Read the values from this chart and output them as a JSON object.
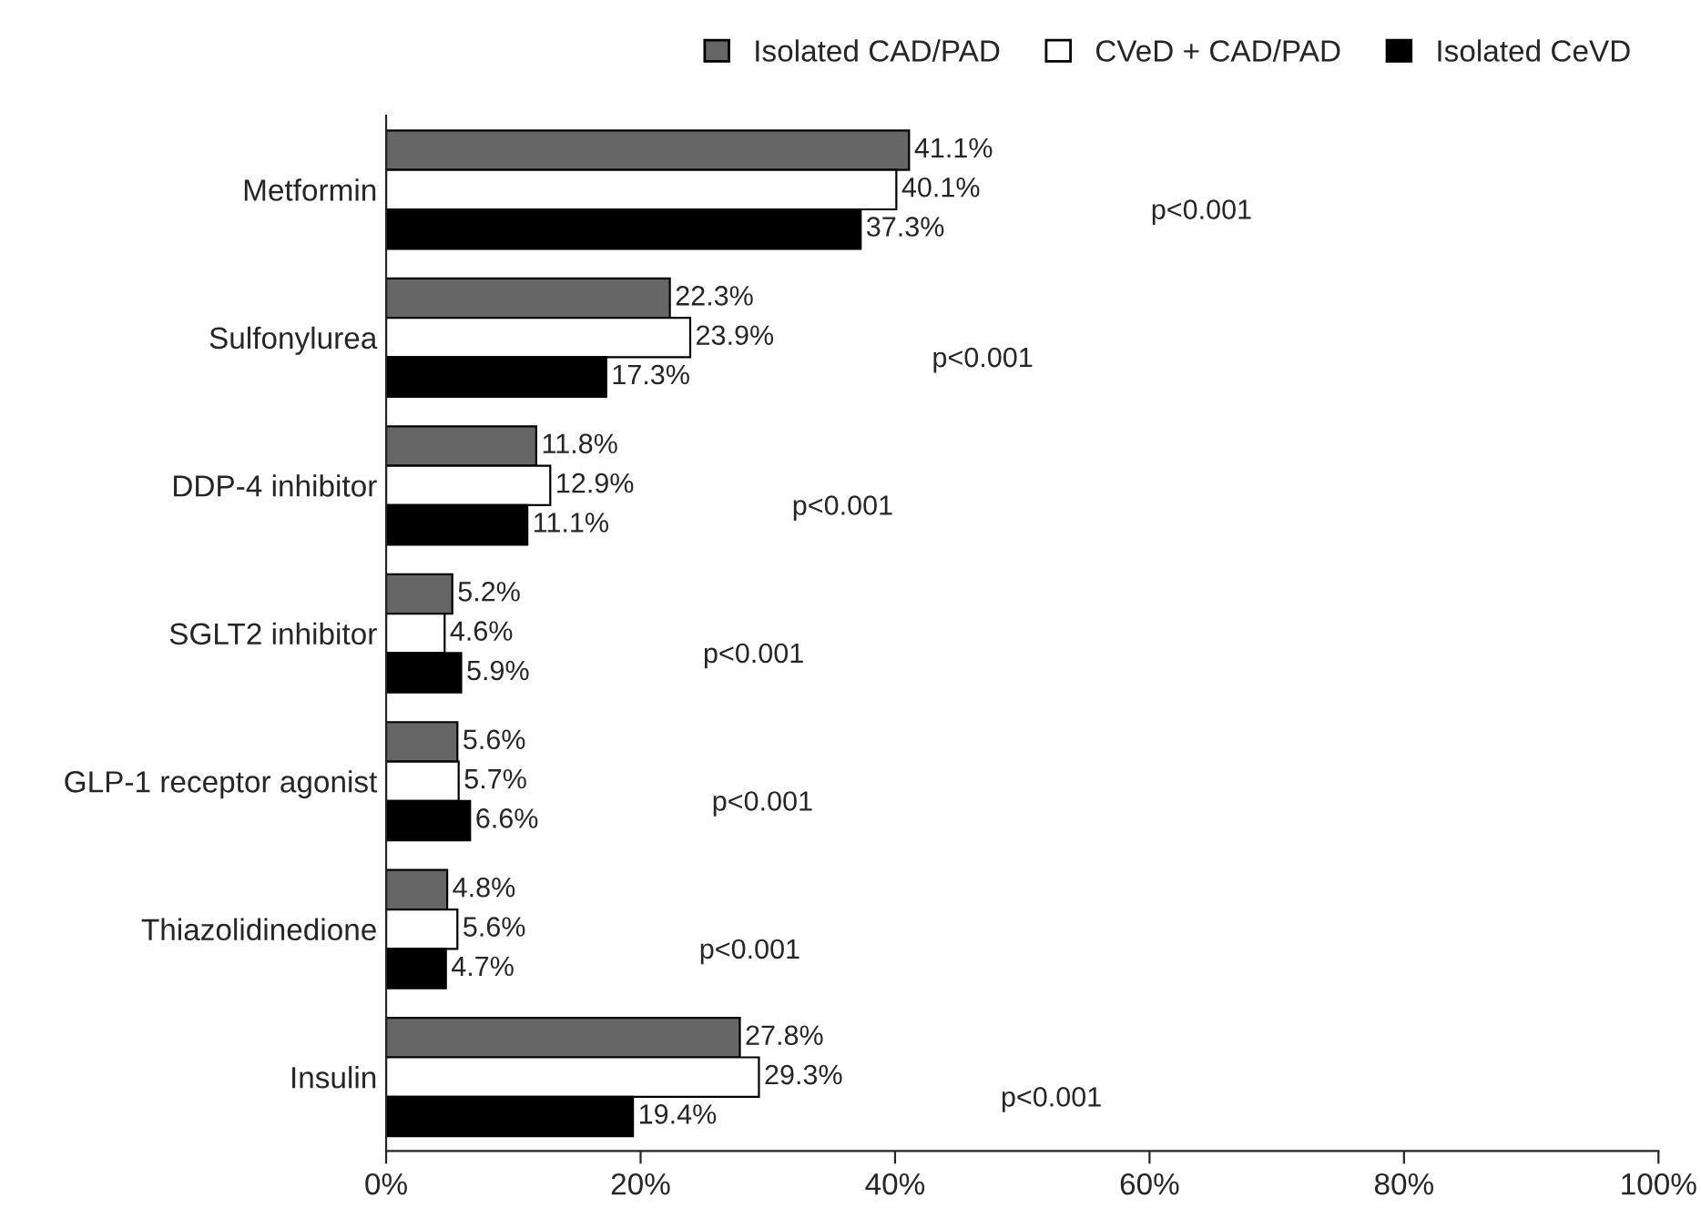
{
  "chart_data": {
    "type": "bar",
    "orientation": "horizontal",
    "categories": [
      "Metformin",
      "Sulfonylurea",
      "DDP-4 inhibitor",
      "SGLT2 inhibitor",
      "GLP-1 receptor agonist",
      "Thiazolidinedione",
      "Insulin"
    ],
    "series": [
      {
        "name": "Isolated CAD/PAD",
        "color": "#666666",
        "values": [
          41.1,
          22.3,
          11.8,
          5.2,
          5.6,
          4.8,
          27.8
        ],
        "value_labels": [
          "41.1%",
          "22.3%",
          "11.8%",
          "5.2%",
          "5.6%",
          "4.8%",
          "27.8%"
        ]
      },
      {
        "name": "CVeD + CAD/PAD",
        "color": "#ffffff",
        "values": [
          40.1,
          23.9,
          12.9,
          4.6,
          5.7,
          5.6,
          29.3
        ],
        "value_labels": [
          "40.1%",
          "23.9%",
          "12.9%",
          "4.6%",
          "5.7%",
          "5.6%",
          "29.3%"
        ]
      },
      {
        "name": "Isolated CeVD",
        "color": "#000000",
        "values": [
          37.3,
          17.3,
          11.1,
          5.9,
          6.6,
          4.7,
          19.4
        ],
        "value_labels": [
          "37.3%",
          "17.3%",
          "11.1%",
          "5.9%",
          "6.6%",
          "4.7%",
          "19.4%"
        ]
      }
    ],
    "xlim": [
      0,
      100
    ],
    "xticks": [
      {
        "value": 0,
        "label": "0%"
      },
      {
        "value": 20,
        "label": "20%"
      },
      {
        "value": 40,
        "label": "40%"
      },
      {
        "value": 60,
        "label": "60%"
      },
      {
        "value": 80,
        "label": "80%"
      },
      {
        "value": 100,
        "label": "100%"
      }
    ],
    "annotations": [
      "p<0.001",
      "p<0.001",
      "p<0.001",
      "p<0.001",
      "p<0.001",
      "p<0.001",
      "p<0.001"
    ],
    "grid": false,
    "legend": "top right"
  }
}
